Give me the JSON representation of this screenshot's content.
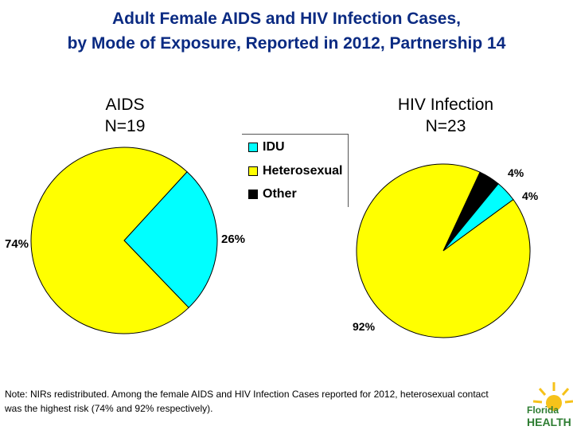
{
  "title": {
    "line1": "Adult Female AIDS and HIV Infection Cases,",
    "line2": "by Mode of Exposure, Reported in 2012, Partnership 14"
  },
  "colors": {
    "idu": "#00ffff",
    "heterosexual": "#ffff00",
    "other": "#000000",
    "title": "#0a2a82"
  },
  "legend": [
    {
      "label": "IDU",
      "color": "#00ffff"
    },
    {
      "label": "Heterosexual",
      "color": "#ffff00"
    },
    {
      "label": "Other",
      "color": "#000000"
    }
  ],
  "chart_data": [
    {
      "type": "pie",
      "title": "AIDS",
      "subtitle": "N=19",
      "slices": [
        {
          "name": "IDU",
          "value": 26,
          "label": "26%"
        },
        {
          "name": "Heterosexual",
          "value": 74,
          "label": "74%"
        }
      ]
    },
    {
      "type": "pie",
      "title": "HIV Infection",
      "subtitle": "N=23",
      "slices": [
        {
          "name": "Other",
          "value": 4,
          "label": "4%"
        },
        {
          "name": "IDU",
          "value": 4,
          "label": "4%"
        },
        {
          "name": "Heterosexual",
          "value": 92,
          "label": "92%"
        }
      ]
    }
  ],
  "note": "Note:  NIRs redistributed.  Among the female AIDS and HIV Infection Cases reported for 2012, heterosexual contact was the highest risk (74%  and 92%  respectively).",
  "logo": {
    "line1": "Florida",
    "line2": "HEALTH"
  }
}
